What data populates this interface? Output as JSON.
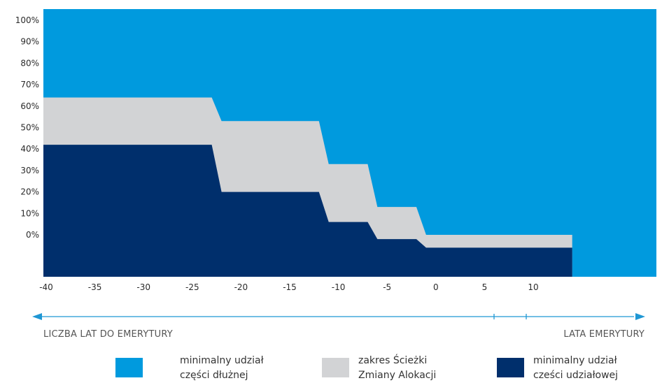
{
  "chart_data": {
    "type": "area",
    "x": [
      -40,
      -23,
      -22,
      -12,
      -11,
      -7,
      -6,
      -2,
      -1,
      14,
      14,
      20
    ],
    "y_ticks": [
      "100%",
      "90%",
      "80%",
      "70%",
      "60%",
      "50%",
      "40%",
      "30%",
      "20%",
      "10%",
      "0%"
    ],
    "x_ticks": [
      "-40",
      "-35",
      "-30",
      "-25",
      "-20",
      "-15",
      "-10",
      "-5",
      "0",
      "5",
      "10"
    ],
    "series": [
      {
        "name": "minimalny udział części udziałowej",
        "color": "#002f6c",
        "values": [
          42,
          42,
          20,
          20,
          6,
          6,
          -2,
          -2,
          -6,
          -6,
          null,
          null
        ]
      },
      {
        "name": "zakres Ścieżki Zmiany Alokacji",
        "color": "#d2d3d5",
        "values": [
          64,
          64,
          53,
          53,
          33,
          33,
          13,
          13,
          0,
          0,
          null,
          null
        ]
      },
      {
        "name": "minimalny udział części dłużnej",
        "color": "#009ade",
        "values": [
          100,
          100,
          100,
          100,
          100,
          100,
          100,
          100,
          100,
          100,
          100,
          100
        ]
      }
    ],
    "arrow_color": "#1f97d4",
    "axis_captions": {
      "left": "LICZBA LAT DO EMERYTURY",
      "right": "LATA EMERYTURY"
    }
  },
  "legend": [
    {
      "line1": "minimalny udział",
      "line2": "części dłużnej",
      "color": "#009ade"
    },
    {
      "line1": "zakres Ścieżki",
      "line2": "Zmiany Alokacji",
      "color": "#d2d3d5"
    },
    {
      "line1": "minimalny udział",
      "line2": "cześci udziałowej",
      "color": "#002f6c"
    }
  ]
}
